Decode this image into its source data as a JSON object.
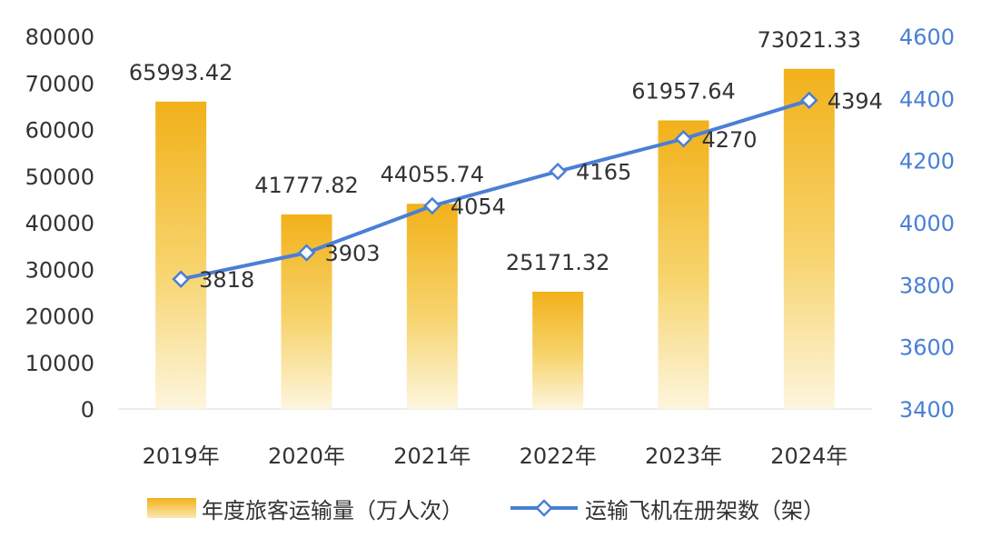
{
  "chart_data": {
    "type": "bar",
    "categories": [
      "2019年",
      "2020年",
      "2021年",
      "2022年",
      "2023年",
      "2024年"
    ],
    "series": [
      {
        "name": "年度旅客运输量（万人次）",
        "type": "bar",
        "axis": "left",
        "values": [
          65993.42,
          41777.82,
          44055.74,
          25171.32,
          61957.64,
          73021.33
        ],
        "labels": [
          "65993.42",
          "41777.82",
          "44055.74",
          "25171.32",
          "61957.64",
          "73021.33"
        ]
      },
      {
        "name": "运输飞机在册架数（架）",
        "type": "line",
        "axis": "right",
        "values": [
          3818,
          3903,
          4054,
          4165,
          4270,
          4394
        ],
        "labels": [
          "3818",
          "3903",
          "4054",
          "4165",
          "4270",
          "4394"
        ]
      }
    ],
    "y_left": {
      "range": [
        0,
        80000
      ],
      "ticks": [
        "80000",
        "70000",
        "60000",
        "50000",
        "40000",
        "30000",
        "20000",
        "10000",
        "0"
      ]
    },
    "y_right": {
      "range": [
        3400,
        4600
      ],
      "ticks": [
        "4600",
        "4400",
        "4200",
        "4000",
        "3800",
        "3600",
        "3400"
      ]
    },
    "grid": false,
    "legend_position": "bottom",
    "colors": {
      "bar_top": "#f2b11a",
      "bar_bottom": "#fdf6de",
      "line": "#4a7fd6",
      "marker_fill": "#ffffff",
      "text": "#333333",
      "right_axis_text": "#4a7fd6",
      "baseline": "#e6e6e6"
    }
  }
}
